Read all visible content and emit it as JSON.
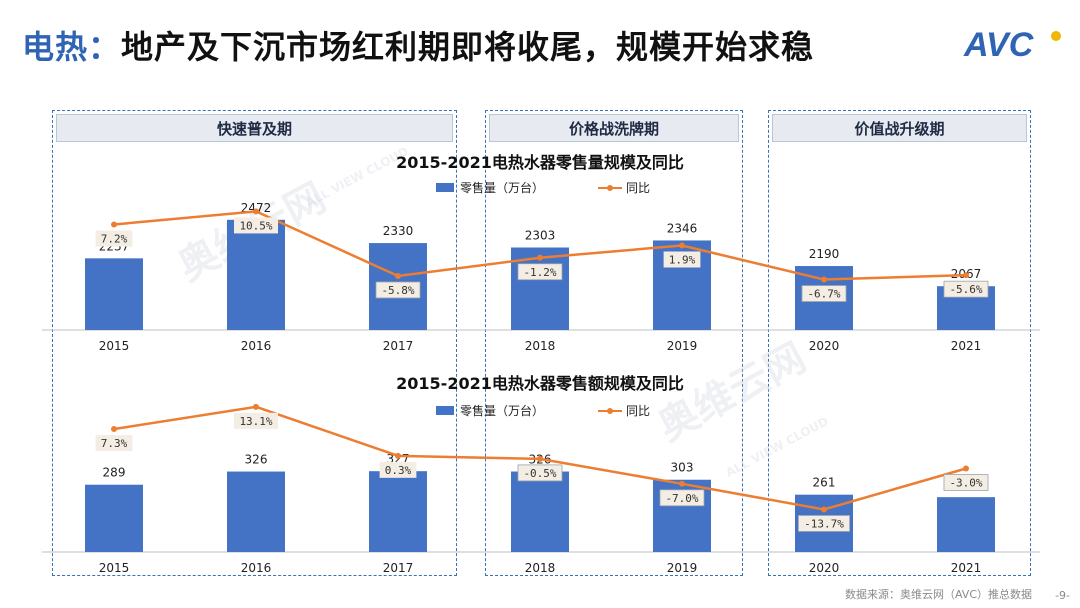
{
  "header": {
    "title_accent": "电热：",
    "title_main": "地产及下沉市场红利期即将收尾，规模开始求稳"
  },
  "brand": {
    "logo_text": "AVC",
    "color": "#2f63b3"
  },
  "phases": [
    {
      "label": "快速普及期"
    },
    {
      "label": "价格战洗牌期"
    },
    {
      "label": "价值战升级期"
    }
  ],
  "footer": {
    "source": "数据来源：奥维云网（AVC）推总数据",
    "page": "-9-"
  },
  "watermark": {
    "text": "奥维云网",
    "subtext": "ALL VIEW CLOUD"
  },
  "colors": {
    "bar": "#4472c4",
    "line": "#ed7d31",
    "accent": "#2f63b3"
  },
  "chart_data": [
    {
      "type": "bar",
      "title": "2015-2021电热水器零售量规模及同比",
      "categories": [
        "2015",
        "2016",
        "2017",
        "2018",
        "2019",
        "2020",
        "2021"
      ],
      "series": [
        {
          "name": "零售量（万台）",
          "type": "bar",
          "values": [
            2237,
            2472,
            2330,
            2303,
            2346,
            2190,
            2067
          ]
        },
        {
          "name": "同比",
          "type": "line",
          "values": [
            7.2,
            10.5,
            -5.8,
            -1.2,
            1.9,
            -6.7,
            -5.6
          ],
          "labels": [
            "7.2%",
            "10.5%",
            "-5.8%",
            "-1.2%",
            "1.9%",
            "-6.7%",
            "-5.6%"
          ]
        }
      ],
      "legend_position": "top-center",
      "grid": false
    },
    {
      "type": "bar",
      "title": "2015-2021电热水器零售额规模及同比",
      "categories": [
        "2015",
        "2016",
        "2017",
        "2018",
        "2019",
        "2020",
        "2021"
      ],
      "series": [
        {
          "name": "零售量（万台）",
          "type": "bar",
          "values": [
            289,
            326,
            327,
            326,
            303,
            261,
            254
          ]
        },
        {
          "name": "同比",
          "type": "line",
          "values": [
            7.3,
            13.1,
            0.3,
            -0.5,
            -7.0,
            -13.7,
            -3.0
          ],
          "labels": [
            "7.3%",
            "13.1%",
            "0.3%",
            "-0.5%",
            "-7.0%",
            "-13.7%",
            "-3.0%"
          ]
        }
      ],
      "legend_position": "top-center",
      "grid": false
    }
  ]
}
